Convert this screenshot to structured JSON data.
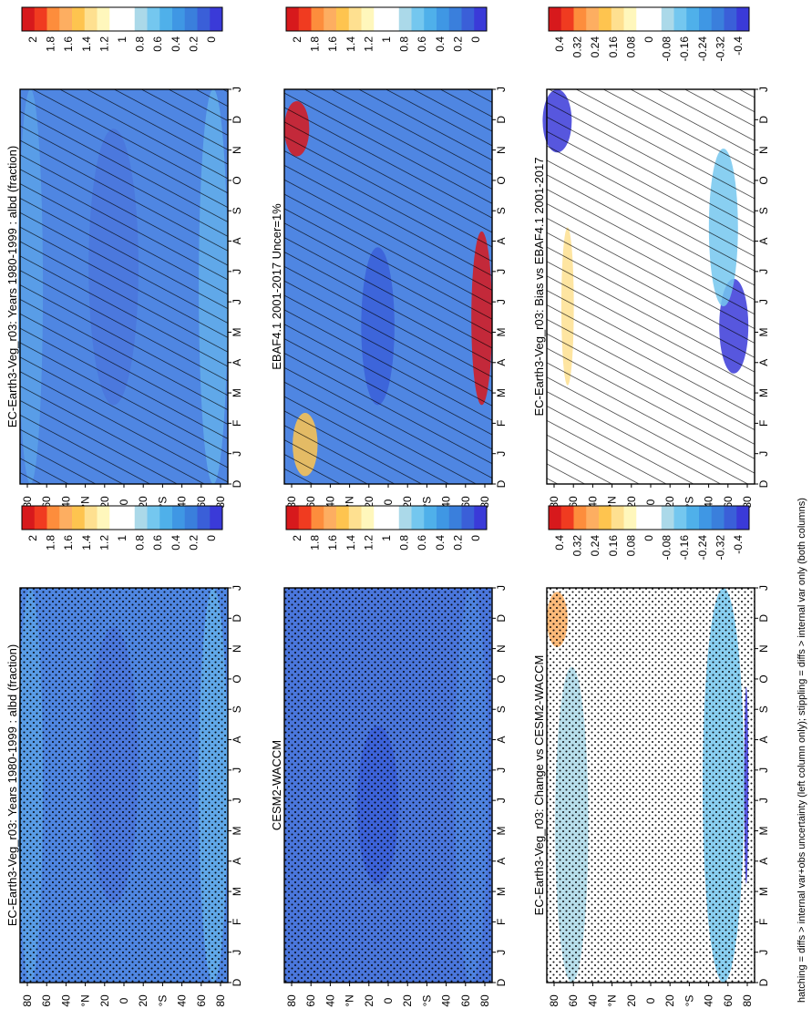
{
  "figure": {
    "footnote": "hatching = diffs > internal var+obs uncertainty (left column only); stippling = diffs > internal var only (both columns)"
  },
  "chart_data": [
    {
      "type": "heatmap",
      "title": "EC-Earth3-Veg_r03: Years 1980-1999 : albd (fraction)",
      "x_ticks": [
        "D",
        "J",
        "F",
        "M",
        "A",
        "M",
        "J",
        "J",
        "A",
        "S",
        "O",
        "N",
        "D",
        "J"
      ],
      "y_ticks": [
        "80",
        "60",
        "40",
        "°N",
        "20",
        "0",
        "20",
        "°S",
        "40",
        "60",
        "80"
      ],
      "colorbar_ticks": [
        "2",
        "1.8",
        "1.6",
        "1.4",
        "1.2",
        "1",
        "0.8",
        "0.6",
        "0.4",
        "0.2",
        "0"
      ],
      "colorbar_colors": [
        "#d7191c",
        "#f03b20",
        "#fd8d3c",
        "#fdae61",
        "#fec44f",
        "#fee090",
        "#fff7bc",
        "#ffffff",
        "#ffffff",
        "#abd9e9",
        "#74c7ef",
        "#4fb0ea",
        "#3f97e4",
        "#3a7fdc",
        "#3a5fd8",
        "#3a3ad8"
      ],
      "hatching": "diagonal",
      "field": "climatology"
    },
    {
      "type": "heatmap",
      "title": "EC-Earth3-Veg_r03: Years 1980-1999 : albd (fraction)",
      "x_ticks": [
        "D",
        "J",
        "F",
        "M",
        "A",
        "M",
        "J",
        "J",
        "A",
        "S",
        "O",
        "N",
        "D",
        "J"
      ],
      "y_ticks": [
        "80",
        "60",
        "40",
        "°N",
        "20",
        "0",
        "20",
        "°S",
        "40",
        "60",
        "80"
      ],
      "colorbar_ticks": [
        "2",
        "1.8",
        "1.6",
        "1.4",
        "1.2",
        "1",
        "0.8",
        "0.6",
        "0.4",
        "0.2",
        "0"
      ],
      "colorbar_colors": [
        "#d7191c",
        "#f03b20",
        "#fd8d3c",
        "#fdae61",
        "#fec44f",
        "#fee090",
        "#fff7bc",
        "#ffffff",
        "#ffffff",
        "#abd9e9",
        "#74c7ef",
        "#4fb0ea",
        "#3f97e4",
        "#3a7fdc",
        "#3a5fd8",
        "#3a3ad8"
      ],
      "hatching": "stipple",
      "field": "climatology"
    },
    {
      "type": "heatmap",
      "title": "EBAF4.1 2001-2017 Uncer=1%",
      "x_ticks": [
        "D",
        "J",
        "F",
        "M",
        "A",
        "M",
        "J",
        "J",
        "A",
        "S",
        "O",
        "N",
        "D",
        "J"
      ],
      "y_ticks": [
        "80",
        "60",
        "40",
        "°N",
        "20",
        "0",
        "20",
        "°S",
        "40",
        "60",
        "80"
      ],
      "colorbar_ticks": [
        "2",
        "1.8",
        "1.6",
        "1.4",
        "1.2",
        "1",
        "0.8",
        "0.6",
        "0.4",
        "0.2",
        "0"
      ],
      "colorbar_colors": [
        "#d7191c",
        "#f03b20",
        "#fd8d3c",
        "#fdae61",
        "#fec44f",
        "#fee090",
        "#fff7bc",
        "#ffffff",
        "#ffffff",
        "#abd9e9",
        "#74c7ef",
        "#4fb0ea",
        "#3f97e4",
        "#3a7fdc",
        "#3a5fd8",
        "#3a3ad8"
      ],
      "hatching": "diagonal",
      "field": "observations"
    },
    {
      "type": "heatmap",
      "title": "CESM2-WACCM",
      "x_ticks": [
        "D",
        "J",
        "F",
        "M",
        "A",
        "M",
        "J",
        "J",
        "A",
        "S",
        "O",
        "N",
        "D",
        "J"
      ],
      "y_ticks": [
        "80",
        "60",
        "40",
        "°N",
        "20",
        "0",
        "20",
        "°S",
        "40",
        "60",
        "80"
      ],
      "colorbar_ticks": [
        "2",
        "1.8",
        "1.6",
        "1.4",
        "1.2",
        "1",
        "0.8",
        "0.6",
        "0.4",
        "0.2",
        "0"
      ],
      "colorbar_colors": [
        "#d7191c",
        "#f03b20",
        "#fd8d3c",
        "#fdae61",
        "#fec44f",
        "#fee090",
        "#fff7bc",
        "#ffffff",
        "#ffffff",
        "#abd9e9",
        "#74c7ef",
        "#4fb0ea",
        "#3f97e4",
        "#3a7fdc",
        "#3a5fd8",
        "#3a3ad8"
      ],
      "hatching": "stipple",
      "field": "reference"
    },
    {
      "type": "heatmap",
      "title": "EC-Earth3-Veg_r03: Bias vs EBAF4.1 2001-2017",
      "x_ticks": [
        "D",
        "J",
        "F",
        "M",
        "A",
        "M",
        "J",
        "J",
        "A",
        "S",
        "O",
        "N",
        "D",
        "J"
      ],
      "y_ticks": [
        "80",
        "60",
        "40",
        "°N",
        "20",
        "0",
        "20",
        "°S",
        "40",
        "60",
        "80"
      ],
      "colorbar_ticks": [
        "0.4",
        "0.32",
        "0.24",
        "0.16",
        "0.08",
        "0",
        "-0.08",
        "-0.16",
        "-0.24",
        "-0.32",
        "-0.4"
      ],
      "colorbar_colors": [
        "#d7191c",
        "#f03b20",
        "#fd8d3c",
        "#fdae61",
        "#fec44f",
        "#fee090",
        "#fff7bc",
        "#ffffff",
        "#ffffff",
        "#abd9e9",
        "#74c7ef",
        "#4fb0ea",
        "#3f97e4",
        "#3a7fdc",
        "#3a5fd8",
        "#3a3ad8"
      ],
      "hatching": "diagonal",
      "field": "difference-bias"
    },
    {
      "type": "heatmap",
      "title": "EC-Earth3-Veg_r03: Change vs CESM2-WACCM",
      "x_ticks": [
        "D",
        "J",
        "F",
        "M",
        "A",
        "M",
        "J",
        "J",
        "A",
        "S",
        "O",
        "N",
        "D",
        "J"
      ],
      "y_ticks": [
        "80",
        "60",
        "40",
        "°N",
        "20",
        "0",
        "20",
        "°S",
        "40",
        "60",
        "80"
      ],
      "colorbar_ticks": [
        "0.4",
        "0.32",
        "0.24",
        "0.16",
        "0.08",
        "0",
        "-0.08",
        "-0.16",
        "-0.24",
        "-0.32",
        "-0.4"
      ],
      "colorbar_colors": [
        "#d7191c",
        "#f03b20",
        "#fd8d3c",
        "#fdae61",
        "#fec44f",
        "#fee090",
        "#fff7bc",
        "#ffffff",
        "#ffffff",
        "#abd9e9",
        "#74c7ef",
        "#4fb0ea",
        "#3f97e4",
        "#3a7fdc",
        "#3a5fd8",
        "#3a3ad8"
      ],
      "hatching": "stipple",
      "field": "difference-change"
    }
  ]
}
